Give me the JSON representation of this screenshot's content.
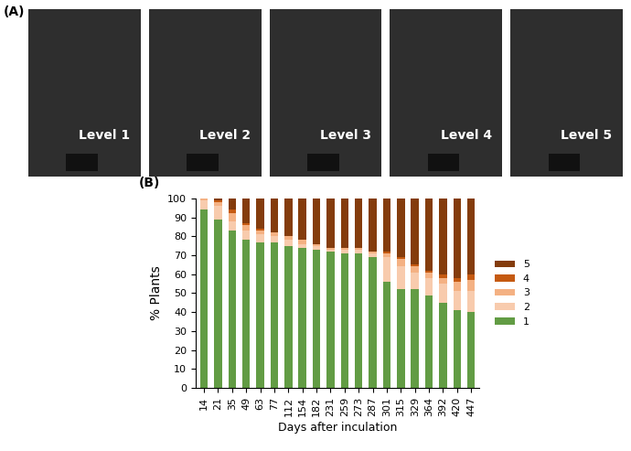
{
  "panel_a": {
    "label": "(A)",
    "image_labels": [
      "Level 1",
      "Level 2",
      "Level 3",
      "Level 4",
      "Level 5"
    ]
  },
  "chart_data": {
    "type": "bar",
    "stacked": true,
    "panel_label": "(B)",
    "x_label": "Days after inculation",
    "y_label": "% Plants",
    "categories": [
      "14",
      "21",
      "35",
      "49",
      "63",
      "77",
      "112",
      "154",
      "182",
      "231",
      "259",
      "273",
      "287",
      "301",
      "315",
      "329",
      "364",
      "392",
      "420",
      "447"
    ],
    "series": [
      {
        "name": "1",
        "color": "#629c44",
        "values": [
          94,
          89,
          83,
          78,
          77,
          77,
          75,
          74,
          73,
          72,
          71,
          71,
          69,
          56,
          52,
          52,
          49,
          45,
          41,
          40
        ]
      },
      {
        "name": "2",
        "color": "#f8cbad",
        "values": [
          5,
          7,
          5,
          5,
          4,
          3,
          3,
          2,
          2,
          1,
          2,
          2,
          2,
          13,
          12,
          9,
          9,
          10,
          10,
          11
        ]
      },
      {
        "name": "3",
        "color": "#f4b183",
        "values": [
          1,
          2,
          4,
          3,
          2,
          2,
          2,
          2,
          1,
          1,
          1,
          1,
          1,
          2,
          4,
          3,
          3,
          3,
          5,
          6
        ]
      },
      {
        "name": "4",
        "color": "#c55a11",
        "values": [
          0,
          1,
          2,
          1,
          1,
          0,
          0,
          0,
          0,
          0,
          0,
          0,
          0,
          1,
          1,
          1,
          1,
          2,
          2,
          3
        ]
      },
      {
        "name": "5",
        "color": "#843c0c",
        "values": [
          0,
          1,
          6,
          13,
          16,
          18,
          20,
          22,
          24,
          26,
          26,
          26,
          28,
          28,
          31,
          35,
          38,
          40,
          42,
          40
        ]
      }
    ],
    "ylim": [
      0,
      100
    ],
    "yticks": [
      0,
      10,
      20,
      30,
      40,
      50,
      60,
      70,
      80,
      90,
      100
    ],
    "legend": "right"
  }
}
